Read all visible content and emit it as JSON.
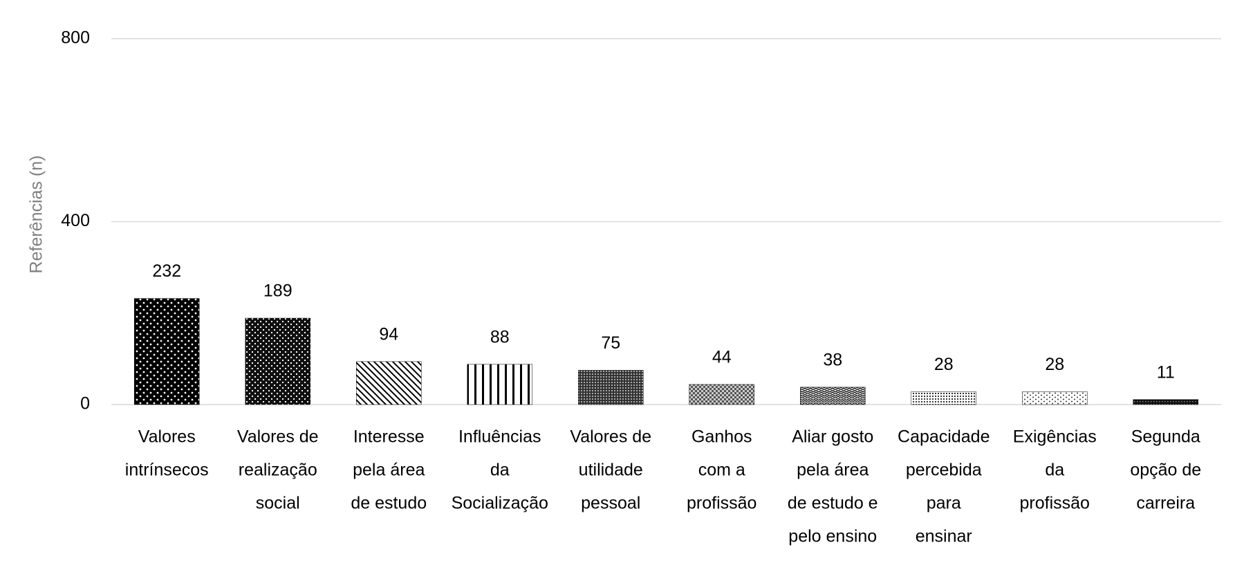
{
  "chart_data": {
    "type": "bar",
    "ylabel": "Referências (n)",
    "categories": [
      [
        "Valores",
        "intrínsecos"
      ],
      [
        "Valores de",
        "realização",
        "social"
      ],
      [
        "Interesse",
        "pela área",
        "de estudo"
      ],
      [
        "Influências",
        "da",
        "Socialização"
      ],
      [
        "Valores de",
        "utilidade",
        "pessoal"
      ],
      [
        "Ganhos",
        "com a",
        "profissão"
      ],
      [
        "Aliar gosto",
        "pela área",
        "de estudo e",
        "pelo ensino"
      ],
      [
        "Capacidade",
        "percebida",
        "para",
        "ensinar"
      ],
      [
        "Exigências",
        "da",
        "profissão"
      ],
      [
        "Segunda",
        "opção de",
        "carreira"
      ]
    ],
    "values": [
      232,
      189,
      94,
      88,
      75,
      44,
      38,
      28,
      28,
      11
    ],
    "color": "#000000",
    "ylim": [
      0,
      800
    ],
    "yticks": [
      0,
      400,
      800
    ],
    "grid": true
  }
}
